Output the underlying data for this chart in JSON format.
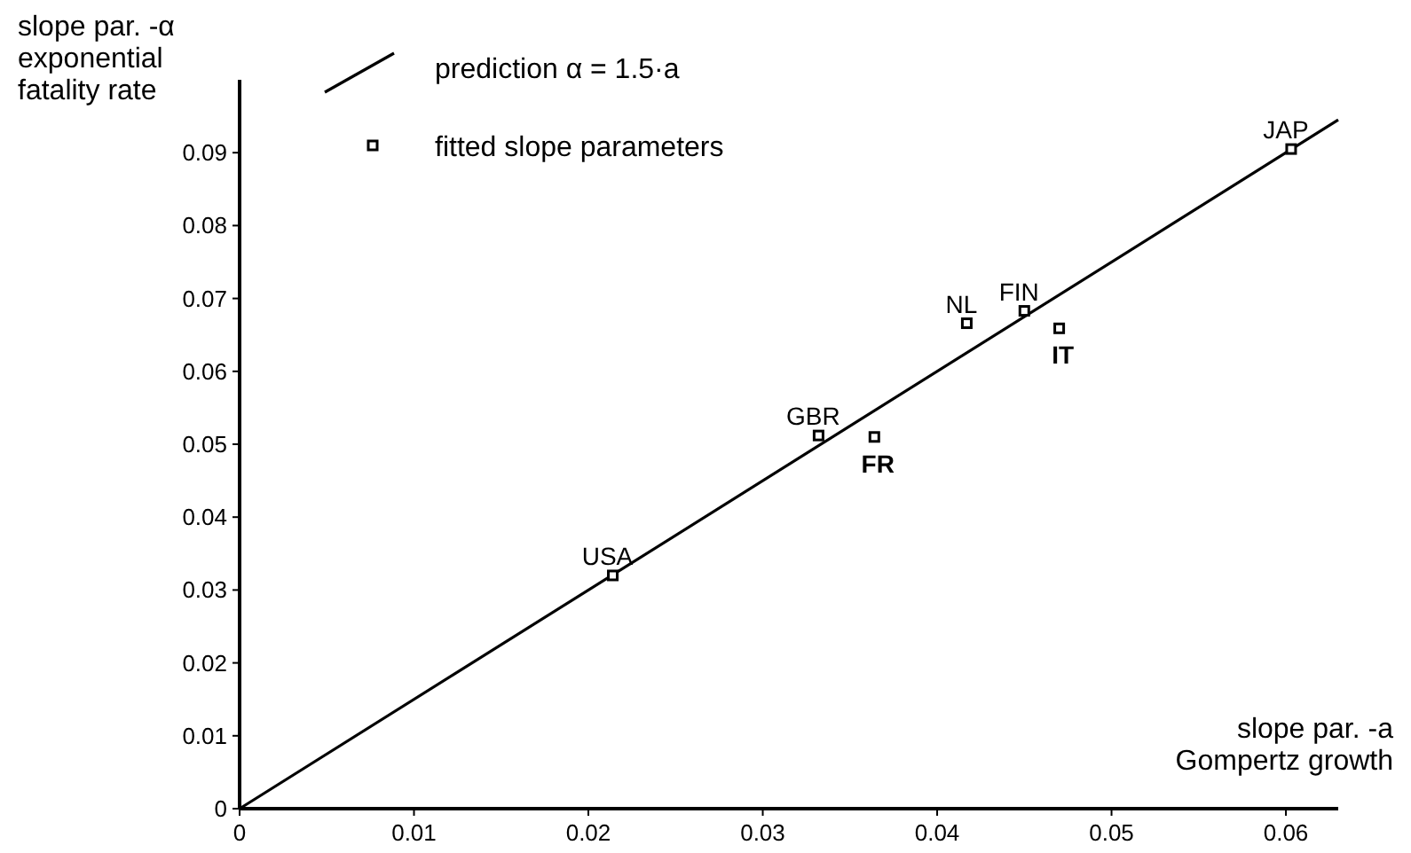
{
  "chart_data": {
    "type": "scatter",
    "xlabel": "slope par. -a\nGompertz growth",
    "ylabel": "slope par. -α\nexponential\nfatality rate",
    "xlim": [
      0,
      0.063
    ],
    "ylim": [
      0,
      0.1
    ],
    "xticks": [
      0,
      0.01,
      0.02,
      0.03,
      0.04,
      0.05,
      0.06
    ],
    "yticks": [
      0,
      0.01,
      0.02,
      0.03,
      0.04,
      0.05,
      0.06,
      0.07,
      0.08,
      0.09
    ],
    "grid": false,
    "legend": "top left",
    "marker": "square",
    "series": [
      {
        "name": "prediction α = 1.5·a",
        "type": "line",
        "color": "#000000",
        "line_style": "solid",
        "marker": "none",
        "x": [
          0,
          0.063
        ],
        "values": [
          0,
          0.0945
        ]
      },
      {
        "name": "fitted slope parameters",
        "color": "#000000",
        "x": [
          0.0214,
          0.0332,
          0.0364,
          0.0417,
          0.045,
          0.047,
          0.0603
        ],
        "values": [
          0.032,
          0.0512,
          0.051,
          0.0666,
          0.0683,
          0.0659,
          0.0905
        ]
      }
    ],
    "annotations": [
      {
        "text": "USA",
        "x": 0.0214,
        "y": 0.032
      },
      {
        "text": "GBR",
        "x": 0.0332,
        "y": 0.0512
      },
      {
        "text": "FR",
        "x": 0.0364,
        "y": 0.051
      },
      {
        "text": "NL",
        "x": 0.0417,
        "y": 0.0666
      },
      {
        "text": "FIN",
        "x": 0.045,
        "y": 0.0683
      },
      {
        "text": "IT",
        "x": 0.047,
        "y": 0.0659
      },
      {
        "text": "JAP",
        "x": 0.0603,
        "y": 0.0905
      }
    ]
  }
}
